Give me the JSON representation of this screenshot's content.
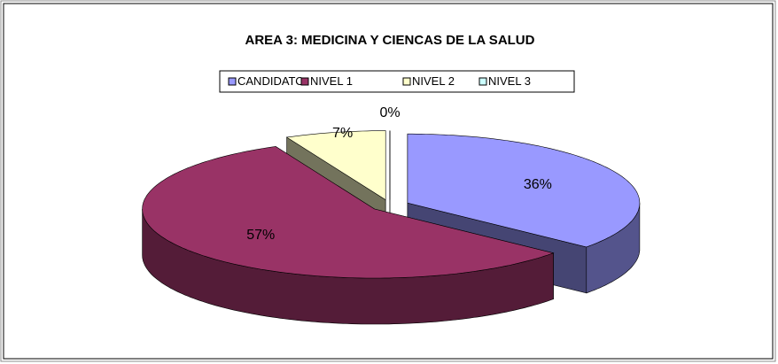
{
  "chart_data": {
    "type": "pie3d",
    "title": "AREA 3: MEDICINA Y CIENCAS DE LA SALUD",
    "categories": [
      "CANDIDATO",
      "NIVEL 1",
      "NIVEL 2",
      "NIVEL 3"
    ],
    "values": [
      36,
      57,
      7,
      0
    ],
    "value_labels": [
      "36%",
      "57%",
      "7%",
      "0%"
    ],
    "colors": [
      "#9999ff",
      "#993366",
      "#ffffcc",
      "#ccffff"
    ],
    "legend": "top"
  }
}
